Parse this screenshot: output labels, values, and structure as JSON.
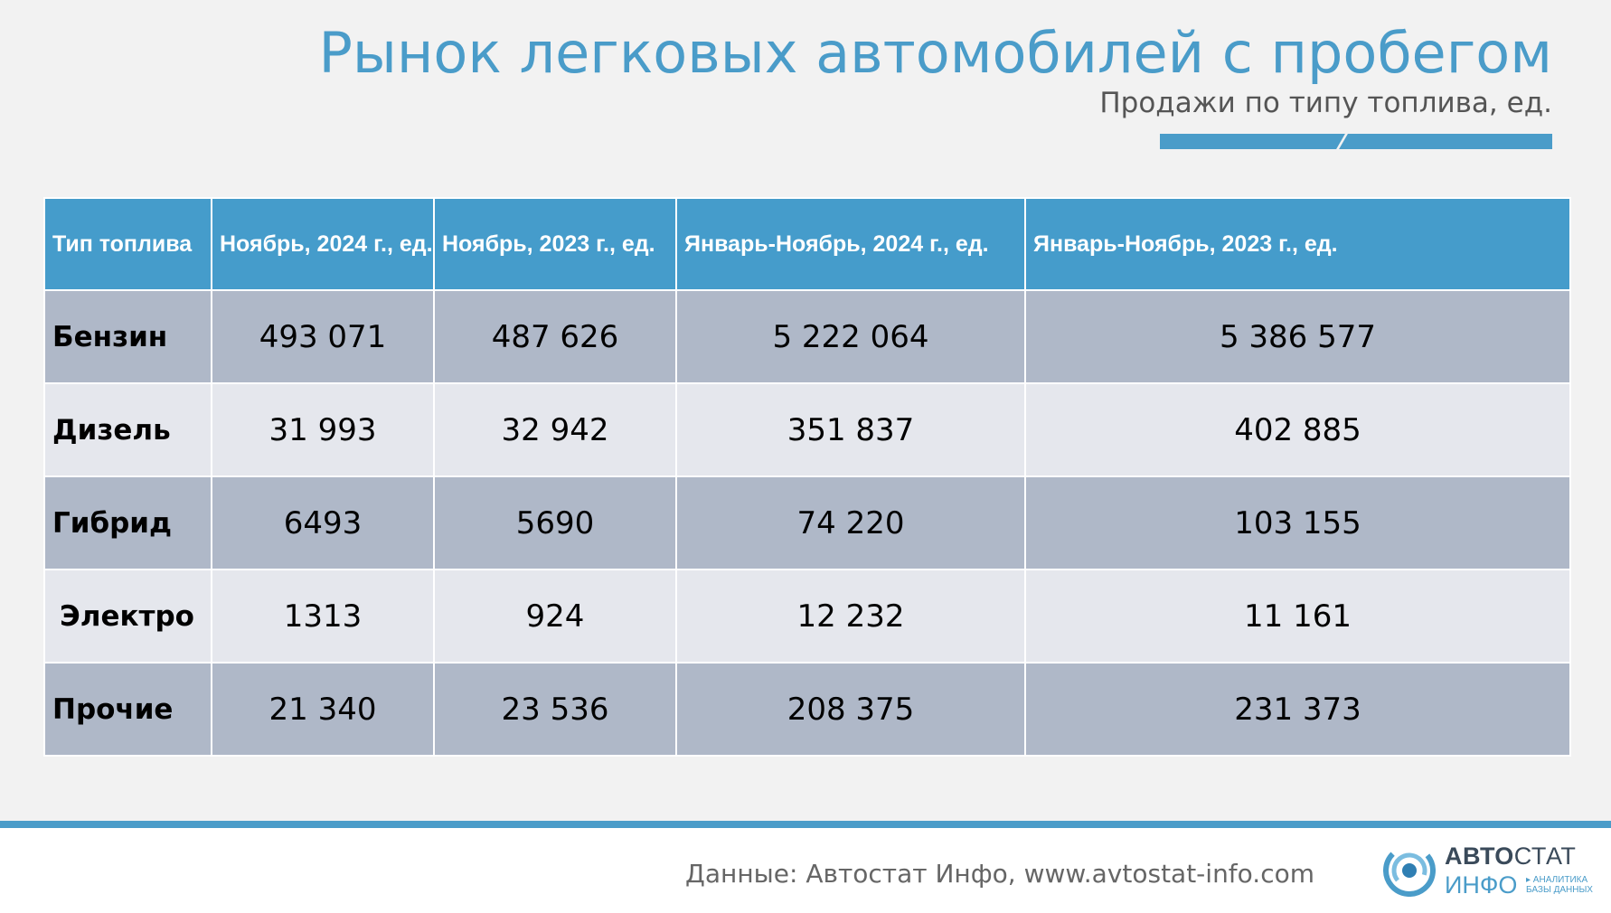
{
  "header": {
    "title": "Рынок легковых автомобилей с пробегом",
    "subtitle": "Продажи по типу топлива, ед."
  },
  "table": {
    "columns": [
      "Тип топлива",
      "Ноябрь, 2024 г., ед.",
      "Ноябрь, 2023 г., ед.",
      "Январь-Ноябрь, 2024 г., ед.",
      "Январь-Ноябрь, 2023 г., ед."
    ],
    "rows": [
      {
        "label": "Бензин",
        "values": [
          "493 071",
          "487 626",
          "5 222 064",
          "5 386 577"
        ]
      },
      {
        "label": "Дизель",
        "values": [
          "31 993",
          "32 942",
          "351 837",
          "402 885"
        ]
      },
      {
        "label": "Гибрид",
        "values": [
          "6493",
          "5690",
          "74 220",
          "103 155"
        ]
      },
      {
        "label": "Электро",
        "values": [
          "1313",
          "924",
          "12 232",
          "11 161"
        ]
      },
      {
        "label": "Прочие",
        "values": [
          "21 340",
          "23 536",
          "208 375",
          "231 373"
        ]
      }
    ]
  },
  "footer": {
    "source": "Данные: Автостат Инфо, www.avtostat-info.com"
  },
  "logo": {
    "top_bold": "АВТО",
    "top_light": "СТАТ",
    "bottom": "ИНФО",
    "tag_line1": "▸ АНАЛИТИКА",
    "tag_line2": "БАЗЫ ДАННЫХ"
  },
  "colors": {
    "accent": "#4a9cc9",
    "header_bg": "#459ccb",
    "row_dark": "#afb8c8",
    "row_light": "#e5e7ed"
  }
}
